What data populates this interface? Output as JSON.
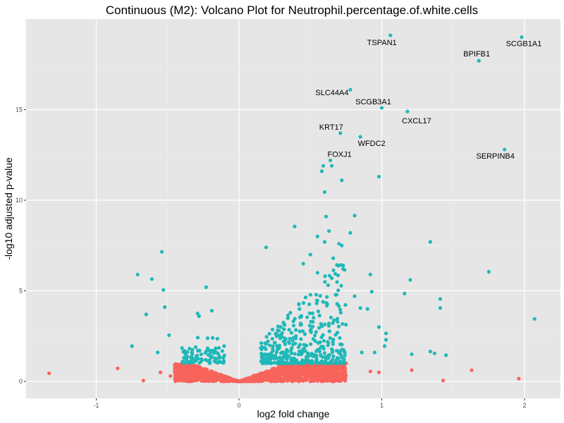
{
  "chart_data": {
    "type": "scatter",
    "title": "Continuous (M2): Volcano Plot for Neutrophil.percentage.of.white.cells",
    "xlabel": "log2 fold change",
    "ylabel": "-log10 adjusted p-value",
    "xlim": [
      -1.5,
      2.25
    ],
    "ylim": [
      -0.95,
      20.1
    ],
    "xticks": [
      -1,
      0,
      1,
      2
    ],
    "xtick_labels": [
      "-1",
      "0",
      "1",
      "2"
    ],
    "yticks": [
      0,
      5,
      10,
      15
    ],
    "ytick_labels": [
      "0",
      "5",
      "10",
      "15"
    ],
    "grid": true,
    "colors": {
      "significant": "#1fb8b8",
      "not_significant": "#f8645c",
      "panel": "#e6e6e6",
      "grid": "#ffffff"
    },
    "labeled_points": [
      {
        "label": "TSPAN1",
        "x": 1.06,
        "y": 19.1
      },
      {
        "label": "SCGB1A1",
        "x": 1.98,
        "y": 19.0
      },
      {
        "label": "BPIFB1",
        "x": 1.68,
        "y": 17.7
      },
      {
        "label": "SLC44A4",
        "x": 0.78,
        "y": 16.1
      },
      {
        "label": "SCGB3A1",
        "x": 1.0,
        "y": 15.1
      },
      {
        "label": "CXCL17",
        "x": 1.18,
        "y": 14.9
      },
      {
        "label": "KRT17",
        "x": 0.71,
        "y": 13.7
      },
      {
        "label": "WFDC2",
        "x": 0.85,
        "y": 13.5
      },
      {
        "label": "SERPINB4",
        "x": 1.86,
        "y": 12.8
      },
      {
        "label": "FOXJ1",
        "x": 0.64,
        "y": 12.2
      }
    ],
    "significant_points": [
      [
        -0.54,
        7.15
      ],
      [
        -0.71,
        5.9
      ],
      [
        -0.61,
        5.65
      ],
      [
        -0.53,
        5.05
      ],
      [
        -0.52,
        4.1
      ],
      [
        -0.65,
        3.7
      ],
      [
        -0.49,
        2.55
      ],
      [
        -0.75,
        1.95
      ],
      [
        -0.57,
        1.6
      ],
      [
        -0.23,
        5.2
      ],
      [
        -0.29,
        3.75
      ],
      [
        -0.28,
        3.6
      ],
      [
        -0.19,
        3.9
      ],
      [
        0.19,
        7.4
      ],
      [
        0.39,
        8.55
      ],
      [
        0.81,
        9.15
      ],
      [
        0.59,
        11.9
      ],
      [
        0.58,
        11.6
      ],
      [
        0.65,
        11.9
      ],
      [
        0.72,
        11.1
      ],
      [
        0.98,
        11.3
      ],
      [
        0.6,
        10.45
      ],
      [
        0.61,
        9.1
      ],
      [
        1.34,
        7.7
      ],
      [
        1.75,
        6.05
      ],
      [
        1.2,
        5.6
      ],
      [
        1.16,
        4.85
      ],
      [
        1.41,
        4.55
      ],
      [
        1.41,
        4.05
      ],
      [
        2.07,
        3.45
      ],
      [
        1.21,
        1.5
      ],
      [
        1.34,
        1.65
      ],
      [
        1.37,
        1.55
      ],
      [
        1.45,
        1.45
      ],
      [
        0.98,
        3.0
      ],
      [
        1.03,
        2.65
      ],
      [
        1.02,
        1.95
      ],
      [
        1.03,
        2.3
      ],
      [
        0.86,
        1.6
      ],
      [
        0.95,
        1.6
      ],
      [
        0.92,
        5.9
      ],
      [
        0.93,
        4.95
      ],
      [
        0.81,
        4.7
      ],
      [
        0.85,
        4.05
      ],
      [
        0.9,
        4.0
      ],
      [
        0.7,
        7.6
      ],
      [
        0.78,
        8.2
      ],
      [
        0.72,
        7.5
      ],
      [
        0.55,
        8.0
      ],
      [
        0.5,
        7.0
      ],
      [
        0.63,
        8.3
      ],
      [
        0.6,
        7.7
      ],
      [
        0.45,
        6.5
      ],
      [
        0.66,
        6.8
      ],
      [
        0.65,
        5.7
      ],
      [
        0.73,
        6.4
      ],
      [
        0.55,
        6.0
      ]
    ],
    "not_significant_points": [
      [
        -1.33,
        0.45
      ],
      [
        -0.85,
        0.72
      ],
      [
        -0.67,
        0.05
      ],
      [
        1.63,
        0.62
      ],
      [
        1.96,
        0.15
      ],
      [
        1.43,
        0.05
      ],
      [
        1.21,
        0.62
      ],
      [
        0.98,
        0.5
      ],
      [
        0.92,
        0.55
      ],
      [
        0.72,
        0.1
      ],
      [
        -0.55,
        0.5
      ],
      [
        -0.48,
        0.3
      ]
    ]
  }
}
